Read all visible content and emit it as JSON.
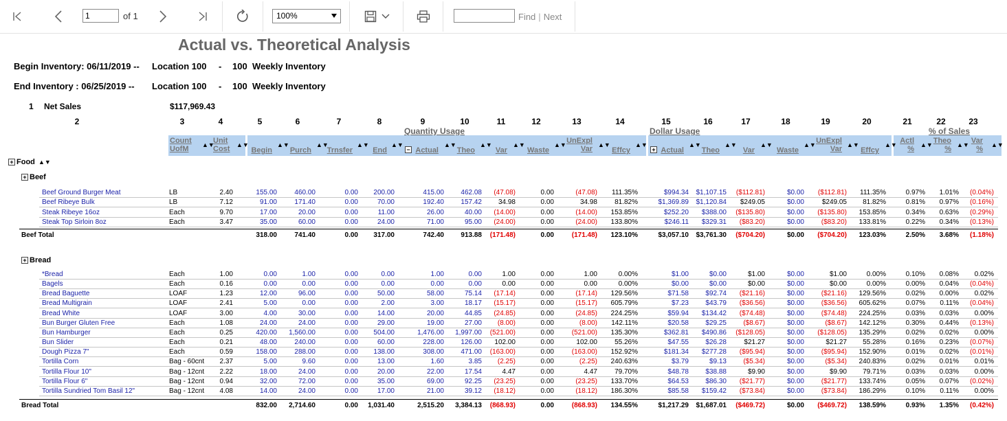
{
  "toolbar": {
    "page_value": "1",
    "of_label": "of 1",
    "zoom_value": "100%",
    "find_label": "Find",
    "separator": "|",
    "next_label": "Next"
  },
  "report": {
    "title": "Actual vs. Theoretical Analysis",
    "begin": {
      "label": "Begin Inventory: 06/11/2019 --",
      "location": "Location 100",
      "dash": "-",
      "code": "100",
      "name": "Weekly Inventory"
    },
    "end": {
      "label": "End Inventory   : 06/25/2019 --",
      "location": "Location 100",
      "dash": "-",
      "code": "100",
      "name": "Weekly Inventory"
    },
    "net_sales": {
      "num": "1",
      "label": "Net Sales",
      "value": "$117,969.43"
    },
    "col_numbers": [
      "2",
      "3",
      "4",
      "5",
      "6",
      "7",
      "8",
      "9",
      "10",
      "11",
      "12",
      "13",
      "14",
      "15",
      "16",
      "17",
      "18",
      "19",
      "20",
      "21",
      "22",
      "23"
    ],
    "groups": {
      "quantity": "Quantity Usage",
      "dollar": "Dollar Usage",
      "sales": "% of Sales"
    },
    "headers": {
      "count_uofm": [
        "Count",
        "UofM"
      ],
      "unit_cost": [
        "Unit",
        "Cost"
      ],
      "begin": "Begin",
      "purch": "Purch",
      "trnsfer": "Trnsfer",
      "end": "End",
      "actual": "Actual",
      "theo": "Theo",
      "var": "Var",
      "waste": "Waste",
      "unexpl_var": [
        "UnExpl",
        "Var"
      ],
      "effcy": "Effcy",
      "d_actual": "Actual",
      "d_theo": "Theo",
      "d_var": "Var",
      "d_waste": "Waste",
      "d_unexpl_var": [
        "UnExpl",
        "Var"
      ],
      "d_effcy": "Effcy",
      "actl_pct": [
        "Actl",
        "%"
      ],
      "theo_pct": [
        "Theo",
        "%"
      ],
      "var_pct": [
        "Var",
        "%"
      ]
    },
    "food_label": "Food",
    "sections": [
      {
        "name": "Beef",
        "rows": [
          [
            "Beef Ground Burger Meat",
            "LB",
            "2.40",
            "155.00",
            "460.00",
            "0.00",
            "200.00",
            "415.00",
            "462.08",
            "(47.08)",
            "0.00",
            "(47.08)",
            "111.35%",
            "$994.34",
            "$1,107.15",
            "($112.81)",
            "$0.00",
            "($112.81)",
            "111.35%",
            "0.97%",
            "1.01%",
            "(0.04%)"
          ],
          [
            "Beef Ribeye Bulk",
            "LB",
            "7.12",
            "91.00",
            "171.40",
            "0.00",
            "70.00",
            "192.40",
            "157.42",
            "34.98",
            "0.00",
            "34.98",
            "81.82%",
            "$1,369.89",
            "$1,120.84",
            "$249.05",
            "$0.00",
            "$249.05",
            "81.82%",
            "0.81%",
            "0.97%",
            "(0.16%)"
          ],
          [
            "Steak Ribeye 16oz",
            "Each",
            "9.70",
            "17.00",
            "20.00",
            "0.00",
            "11.00",
            "26.00",
            "40.00",
            "(14.00)",
            "0.00",
            "(14.00)",
            "153.85%",
            "$252.20",
            "$388.00",
            "($135.80)",
            "$0.00",
            "($135.80)",
            "153.85%",
            "0.34%",
            "0.63%",
            "(0.29%)"
          ],
          [
            "Steak Top Sirloin 8oz",
            "Each",
            "3.47",
            "35.00",
            "60.00",
            "0.00",
            "24.00",
            "71.00",
            "95.00",
            "(24.00)",
            "0.00",
            "(24.00)",
            "133.80%",
            "$246.11",
            "$329.31",
            "($83.20)",
            "$0.00",
            "($83.20)",
            "133.81%",
            "0.22%",
            "0.34%",
            "(0.13%)"
          ]
        ],
        "total": [
          "Beef Total",
          "",
          "",
          "318.00",
          "741.40",
          "0.00",
          "317.00",
          "742.40",
          "913.88",
          "(171.48)",
          "0.00",
          "(171.48)",
          "123.10%",
          "$3,057.10",
          "$3,761.30",
          "($704.20)",
          "$0.00",
          "($704.20)",
          "123.03%",
          "2.50%",
          "3.68%",
          "(1.18%)"
        ]
      },
      {
        "name": "Bread",
        "rows": [
          [
            "*Bread",
            "Each",
            "1.00",
            "0.00",
            "1.00",
            "0.00",
            "0.00",
            "1.00",
            "0.00",
            "1.00",
            "0.00",
            "1.00",
            "0.00%",
            "$1.00",
            "$0.00",
            "$1.00",
            "$0.00",
            "$1.00",
            "0.00%",
            "0.10%",
            "0.08%",
            "0.02%"
          ],
          [
            "Bagels",
            "Each",
            "0.16",
            "0.00",
            "0.00",
            "0.00",
            "0.00",
            "0.00",
            "0.00",
            "0.00",
            "0.00",
            "0.00",
            "0.00%",
            "$0.00",
            "$0.00",
            "$0.00",
            "$0.00",
            "$0.00",
            "0.00%",
            "0.00%",
            "0.04%",
            "(0.04%)"
          ],
          [
            "Bread Baguette",
            "LOAF",
            "1.23",
            "12.00",
            "96.00",
            "0.00",
            "50.00",
            "58.00",
            "75.14",
            "(17.14)",
            "0.00",
            "(17.14)",
            "129.56%",
            "$71.58",
            "$92.74",
            "($21.16)",
            "$0.00",
            "($21.16)",
            "129.56%",
            "0.02%",
            "0.00%",
            "0.02%"
          ],
          [
            "Bread Multigrain",
            "LOAF",
            "2.41",
            "5.00",
            "0.00",
            "0.00",
            "2.00",
            "3.00",
            "18.17",
            "(15.17)",
            "0.00",
            "(15.17)",
            "605.79%",
            "$7.23",
            "$43.79",
            "($36.56)",
            "$0.00",
            "($36.56)",
            "605.62%",
            "0.07%",
            "0.11%",
            "(0.04%)"
          ],
          [
            "Bread White",
            "LOAF",
            "3.00",
            "4.00",
            "30.00",
            "0.00",
            "14.00",
            "20.00",
            "44.85",
            "(24.85)",
            "0.00",
            "(24.85)",
            "224.25%",
            "$59.94",
            "$134.42",
            "($74.48)",
            "$0.00",
            "($74.48)",
            "224.25%",
            "0.03%",
            "0.03%",
            "0.00%"
          ],
          [
            "Bun Burger Gluten Free",
            "Each",
            "1.08",
            "24.00",
            "24.00",
            "0.00",
            "29.00",
            "19.00",
            "27.00",
            "(8.00)",
            "0.00",
            "(8.00)",
            "142.11%",
            "$20.58",
            "$29.25",
            "($8.67)",
            "$0.00",
            "($8.67)",
            "142.12%",
            "0.30%",
            "0.44%",
            "(0.13%)"
          ],
          [
            "Bun Hamburger",
            "Each",
            "0.25",
            "420.00",
            "1,560.00",
            "0.00",
            "504.00",
            "1,476.00",
            "1,997.00",
            "(521.00)",
            "0.00",
            "(521.00)",
            "135.30%",
            "$362.81",
            "$490.86",
            "($128.05)",
            "$0.00",
            "($128.05)",
            "135.29%",
            "0.02%",
            "0.02%",
            "0.00%"
          ],
          [
            "Bun Slider",
            "Each",
            "0.21",
            "48.00",
            "240.00",
            "0.00",
            "60.00",
            "228.00",
            "126.00",
            "102.00",
            "0.00",
            "102.00",
            "55.26%",
            "$47.55",
            "$26.28",
            "$21.27",
            "$0.00",
            "$21.27",
            "55.28%",
            "0.16%",
            "0.23%",
            "(0.07%)"
          ],
          [
            "Dough Pizza 7\"",
            "Each",
            "0.59",
            "158.00",
            "288.00",
            "0.00",
            "138.00",
            "308.00",
            "471.00",
            "(163.00)",
            "0.00",
            "(163.00)",
            "152.92%",
            "$181.34",
            "$277.28",
            "($95.94)",
            "$0.00",
            "($95.94)",
            "152.90%",
            "0.01%",
            "0.02%",
            "(0.01%)"
          ],
          [
            "Tortilla Corn",
            "Bag - 60cnt",
            "2.37",
            "5.00",
            "9.60",
            "0.00",
            "13.00",
            "1.60",
            "3.85",
            "(2.25)",
            "0.00",
            "(2.25)",
            "240.63%",
            "$3.79",
            "$9.13",
            "($5.34)",
            "$0.00",
            "($5.34)",
            "240.83%",
            "0.02%",
            "0.01%",
            "0.01%"
          ],
          [
            "Tortilla Flour 10\"",
            "Bag - 12cnt",
            "2.22",
            "18.00",
            "24.00",
            "0.00",
            "20.00",
            "22.00",
            "17.54",
            "4.47",
            "0.00",
            "4.47",
            "79.70%",
            "$48.78",
            "$38.88",
            "$9.90",
            "$0.00",
            "$9.90",
            "79.71%",
            "0.03%",
            "0.03%",
            "0.00%"
          ],
          [
            "Tortilla Flour 6\"",
            "Bag - 12cnt",
            "0.94",
            "32.00",
            "72.00",
            "0.00",
            "35.00",
            "69.00",
            "92.25",
            "(23.25)",
            "0.00",
            "(23.25)",
            "133.70%",
            "$64.53",
            "$86.30",
            "($21.77)",
            "$0.00",
            "($21.77)",
            "133.74%",
            "0.05%",
            "0.07%",
            "(0.02%)"
          ],
          [
            "Tortilla Sundried Tom Basil 12\"",
            "Bag - 12cnt",
            "4.08",
            "14.00",
            "24.00",
            "0.00",
            "17.00",
            "21.00",
            "39.12",
            "(18.12)",
            "0.00",
            "(18.12)",
            "186.30%",
            "$85.58",
            "$159.42",
            "($73.84)",
            "$0.00",
            "($73.84)",
            "186.29%",
            "0.10%",
            "0.11%",
            "0.00%"
          ]
        ],
        "total": [
          "Bread Total",
          "",
          "",
          "832.00",
          "2,714.60",
          "0.00",
          "1,031.40",
          "2,515.20",
          "3,384.13",
          "(868.93)",
          "0.00",
          "(868.93)",
          "134.55%",
          "$1,217.29",
          "$1,687.01",
          "($469.72)",
          "$0.00",
          "($469.72)",
          "138.59%",
          "0.93%",
          "1.35%",
          "(0.42%)"
        ]
      }
    ]
  }
}
